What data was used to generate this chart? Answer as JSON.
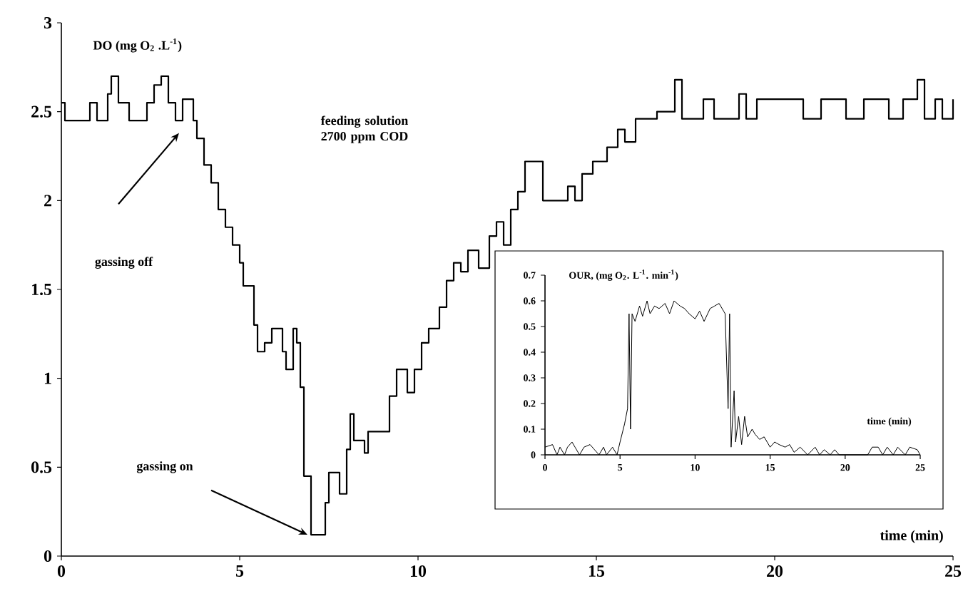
{
  "chart_data": [
    {
      "type": "step",
      "color": "#000000",
      "xlabel": "time (min)",
      "ylabel": "DO (mg O$_{2}$ .L$^{-1}$)",
      "xlim": [
        0,
        25
      ],
      "ylim": [
        0,
        3
      ],
      "xticks": [
        0,
        5,
        10,
        15,
        20,
        25
      ],
      "yticks": [
        0,
        0.5,
        1,
        1.5,
        2,
        2.5,
        3
      ],
      "annotations": [
        "feeding solution 2700 ppm COD",
        "gassing off",
        "gassing on"
      ],
      "x": [
        0,
        0.1,
        0.5,
        0.8,
        1.0,
        1.3,
        1.4,
        1.6,
        1.9,
        2.3,
        2.4,
        2.6,
        2.8,
        3.0,
        3.2,
        3.4,
        3.7,
        3.8,
        4.0,
        4.2,
        4.4,
        4.6,
        4.8,
        5.0,
        5.1,
        5.4,
        5.5,
        5.7,
        5.9,
        6.2,
        6.3,
        6.5,
        6.6,
        6.7,
        6.8,
        7.0,
        7.3,
        7.4,
        7.5,
        7.8,
        8.0,
        8.1,
        8.2,
        8.5,
        8.6,
        9.1,
        9.2,
        9.4,
        9.7,
        9.9,
        10.1,
        10.3,
        10.6,
        10.8,
        11.0,
        11.2,
        11.4,
        11.7,
        12.0,
        12.2,
        12.4,
        12.6,
        12.8,
        13.0,
        13.5,
        14.0,
        14.2,
        14.4,
        14.6,
        14.9,
        15.3,
        15.6,
        15.8,
        16.1,
        16.7,
        17.2,
        17.4,
        18.0,
        18.3,
        19.0,
        19.2,
        19.5,
        20.5,
        20.8,
        21.3,
        22.0,
        22.5,
        23.2,
        23.6,
        24.0,
        24.2,
        24.5,
        24.7,
        25
      ],
      "values": [
        2.55,
        2.45,
        2.45,
        2.55,
        2.45,
        2.6,
        2.7,
        2.55,
        2.45,
        2.45,
        2.55,
        2.65,
        2.7,
        2.55,
        2.45,
        2.57,
        2.45,
        2.35,
        2.2,
        2.1,
        1.95,
        1.85,
        1.75,
        1.65,
        1.52,
        1.3,
        1.15,
        1.2,
        1.28,
        1.15,
        1.05,
        1.28,
        1.2,
        0.95,
        0.45,
        0.12,
        0.12,
        0.3,
        0.47,
        0.35,
        0.6,
        0.8,
        0.65,
        0.58,
        0.7,
        0.7,
        0.9,
        1.05,
        0.92,
        1.05,
        1.2,
        1.28,
        1.4,
        1.55,
        1.65,
        1.6,
        1.72,
        1.62,
        1.8,
        1.88,
        1.75,
        1.95,
        2.05,
        2.22,
        2.0,
        2.0,
        2.08,
        2.0,
        2.15,
        2.22,
        2.3,
        2.4,
        2.33,
        2.46,
        2.5,
        2.68,
        2.46,
        2.57,
        2.46,
        2.6,
        2.46,
        2.57,
        2.57,
        2.46,
        2.57,
        2.46,
        2.57,
        2.46,
        2.57,
        2.68,
        2.46,
        2.57,
        2.46,
        2.57
      ]
    },
    {
      "type": "line",
      "color": "#000000",
      "xlabel": "time (min)",
      "ylabel": "OUR, (mg O$_{2}$. L$^{-1}$. min$^{-1}$)",
      "xlim": [
        0,
        25
      ],
      "ylim": [
        0,
        0.7
      ],
      "xticks": [
        0,
        5,
        10,
        15,
        20,
        25
      ],
      "yticks": [
        0,
        0.1,
        0.2,
        0.3,
        0.4,
        0.5,
        0.6,
        0.7
      ],
      "x": [
        0,
        0.5,
        0.8,
        1.0,
        1.3,
        1.5,
        1.8,
        2.0,
        2.3,
        2.6,
        3.0,
        3.3,
        3.6,
        3.9,
        4.1,
        4.5,
        4.8,
        5.0,
        5.3,
        5.5,
        5.6,
        5.7,
        5.8,
        6.0,
        6.3,
        6.5,
        6.8,
        7.0,
        7.3,
        7.6,
        8.0,
        8.3,
        8.6,
        9.0,
        9.3,
        9.6,
        10.0,
        10.3,
        10.6,
        11.0,
        11.3,
        11.6,
        11.9,
        12.0,
        12.2,
        12.3,
        12.4,
        12.6,
        12.7,
        12.9,
        13.1,
        13.3,
        13.5,
        13.8,
        14.0,
        14.3,
        14.6,
        15.0,
        15.3,
        15.6,
        16.0,
        16.3,
        16.6,
        17.0,
        17.5,
        18.0,
        18.3,
        18.6,
        19.0,
        19.3,
        19.6,
        21.5,
        21.8,
        22.2,
        22.5,
        22.8,
        23.2,
        23.5,
        24.0,
        24.3,
        24.8,
        25
      ],
      "values": [
        0.03,
        0.04,
        0.0,
        0.03,
        0.0,
        0.03,
        0.05,
        0.03,
        0.0,
        0.03,
        0.04,
        0.02,
        0.0,
        0.03,
        0.0,
        0.03,
        0.0,
        0.05,
        0.12,
        0.18,
        0.55,
        0.1,
        0.55,
        0.52,
        0.58,
        0.54,
        0.6,
        0.55,
        0.58,
        0.57,
        0.59,
        0.55,
        0.6,
        0.58,
        0.57,
        0.55,
        0.53,
        0.56,
        0.52,
        0.57,
        0.58,
        0.59,
        0.56,
        0.55,
        0.18,
        0.55,
        0.03,
        0.25,
        0.05,
        0.15,
        0.04,
        0.15,
        0.07,
        0.1,
        0.08,
        0.06,
        0.07,
        0.03,
        0.05,
        0.04,
        0.03,
        0.04,
        0.01,
        0.03,
        0.0,
        0.03,
        0.0,
        0.02,
        0.0,
        0.02,
        0.0,
        0.0,
        0.03,
        0.03,
        0.0,
        0.03,
        0.0,
        0.03,
        0.0,
        0.03,
        0.02,
        0.0
      ]
    }
  ]
}
